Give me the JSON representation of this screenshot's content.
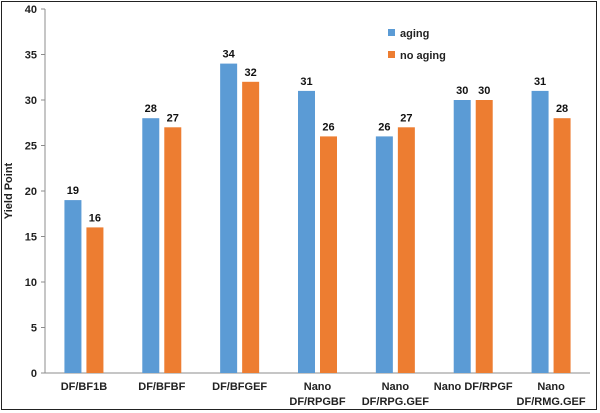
{
  "chart_data": {
    "type": "bar",
    "title": "",
    "xlabel": "",
    "ylabel": "Yield Point",
    "ylim": [
      0,
      40
    ],
    "yticks": [
      0,
      5,
      10,
      15,
      20,
      25,
      30,
      35,
      40
    ],
    "grid": false,
    "legend_position": "top-right",
    "categories": [
      [
        "DF/BF1B"
      ],
      [
        "DF/BFBF"
      ],
      [
        "DF/BFGEF"
      ],
      [
        "Nano",
        "DF/RPGBF"
      ],
      [
        "Nano",
        "DF/RPG.GEF"
      ],
      [
        "Nano DF/RPGF"
      ],
      [
        "Nano",
        "DF/RMG.GEF"
      ]
    ],
    "series": [
      {
        "name": "aging",
        "color": "#5B9BD5",
        "values": [
          19,
          28,
          34,
          31,
          26,
          30,
          31
        ]
      },
      {
        "name": "no aging",
        "color": "#ED7D31",
        "values": [
          16,
          27,
          32,
          26,
          27,
          30,
          28
        ]
      }
    ]
  }
}
